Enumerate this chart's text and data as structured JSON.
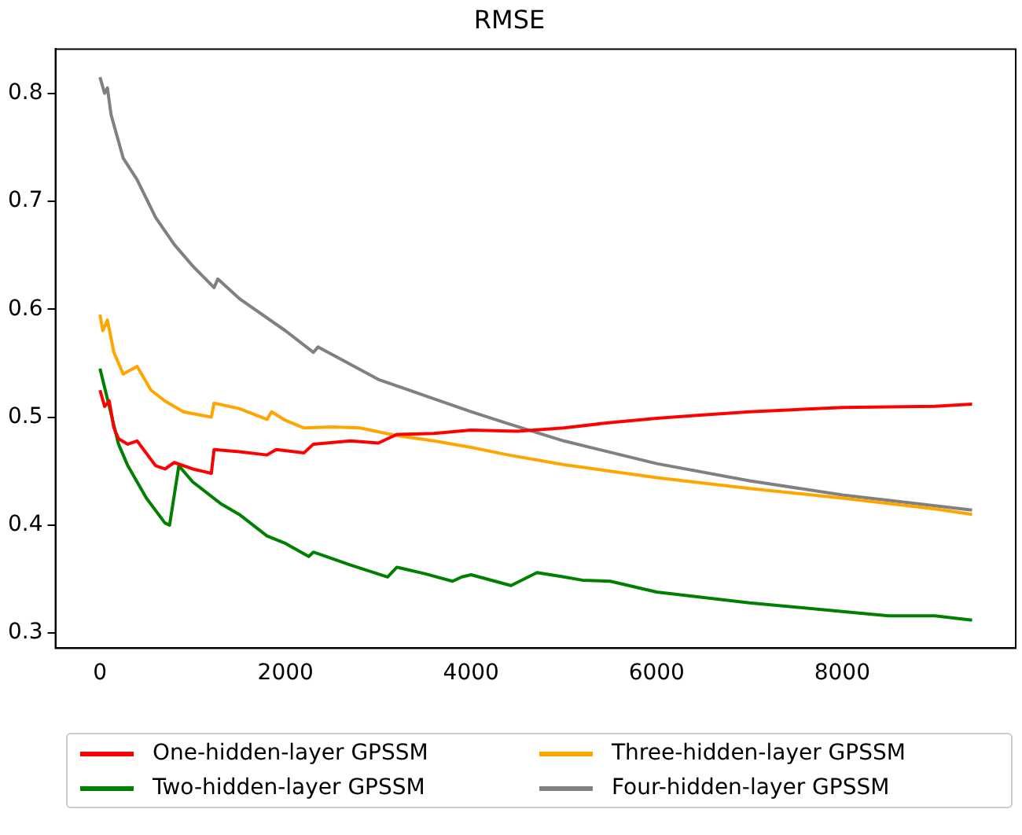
{
  "chart_data": {
    "type": "line",
    "title": "RMSE",
    "xlim": [
      -480,
      9870
    ],
    "xticks": [
      0,
      2000,
      4000,
      6000,
      8000
    ],
    "ylim": [
      0.286,
      0.841
    ],
    "yticks": [
      0.3,
      0.4,
      0.5,
      0.6,
      0.7,
      0.8
    ],
    "grid": false,
    "legend": "bottom",
    "marker": "none",
    "line_style": "solid",
    "series": [
      {
        "name": "One-hidden-layer GPSSM",
        "color": "#ff0000",
        "x": [
          0,
          50,
          100,
          150,
          200,
          300,
          400,
          600,
          700,
          800,
          1000,
          1200,
          1230,
          1500,
          1800,
          1900,
          2200,
          2300,
          2700,
          3000,
          3200,
          3600,
          4000,
          4500,
          5000,
          5500,
          6000,
          6500,
          7000,
          8000,
          9000,
          9400
        ],
        "values": [
          0.525,
          0.51,
          0.515,
          0.49,
          0.48,
          0.475,
          0.478,
          0.455,
          0.452,
          0.458,
          0.452,
          0.448,
          0.47,
          0.468,
          0.465,
          0.47,
          0.467,
          0.475,
          0.478,
          0.476,
          0.484,
          0.485,
          0.488,
          0.487,
          0.49,
          0.495,
          0.499,
          0.502,
          0.505,
          0.509,
          0.51,
          0.512
        ]
      },
      {
        "name": "Two-hidden-layer GPSSM",
        "color": "#008000",
        "x": [
          0,
          100,
          200,
          300,
          500,
          700,
          750,
          850,
          1000,
          1300,
          1500,
          1800,
          2000,
          2250,
          2300,
          2700,
          3100,
          3200,
          3500,
          3800,
          3900,
          4000,
          4430,
          4710,
          5000,
          5200,
          5500,
          6000,
          7000,
          8000,
          8500,
          9000,
          9400
        ],
        "values": [
          0.545,
          0.51,
          0.475,
          0.455,
          0.425,
          0.402,
          0.4,
          0.455,
          0.44,
          0.42,
          0.41,
          0.39,
          0.383,
          0.371,
          0.375,
          0.363,
          0.352,
          0.361,
          0.355,
          0.348,
          0.352,
          0.354,
          0.344,
          0.356,
          0.352,
          0.349,
          0.348,
          0.338,
          0.328,
          0.32,
          0.316,
          0.316,
          0.312
        ]
      },
      {
        "name": "Three-hidden-layer GPSSM",
        "color": "#ffa500",
        "x": [
          0,
          30,
          80,
          150,
          250,
          400,
          550,
          700,
          900,
          1200,
          1230,
          1500,
          1800,
          1850,
          2000,
          2200,
          2500,
          2800,
          3200,
          3600,
          4000,
          4400,
          5000,
          6000,
          7000,
          8000,
          9000,
          9400
        ],
        "values": [
          0.595,
          0.58,
          0.59,
          0.56,
          0.54,
          0.547,
          0.525,
          0.515,
          0.505,
          0.5,
          0.513,
          0.508,
          0.498,
          0.505,
          0.497,
          0.49,
          0.491,
          0.49,
          0.483,
          0.478,
          0.472,
          0.465,
          0.456,
          0.444,
          0.434,
          0.425,
          0.415,
          0.41
        ]
      },
      {
        "name": "Four-hidden-layer GPSSM",
        "color": "#808080",
        "x": [
          0,
          50,
          80,
          120,
          250,
          400,
          600,
          800,
          1000,
          1230,
          1270,
          1500,
          2000,
          2300,
          2350,
          3000,
          3500,
          4000,
          4400,
          5000,
          6000,
          7000,
          8000,
          9400
        ],
        "values": [
          0.815,
          0.8,
          0.805,
          0.78,
          0.74,
          0.72,
          0.685,
          0.66,
          0.64,
          0.62,
          0.628,
          0.61,
          0.58,
          0.56,
          0.565,
          0.535,
          0.52,
          0.505,
          0.494,
          0.478,
          0.457,
          0.441,
          0.428,
          0.414
        ]
      }
    ]
  }
}
